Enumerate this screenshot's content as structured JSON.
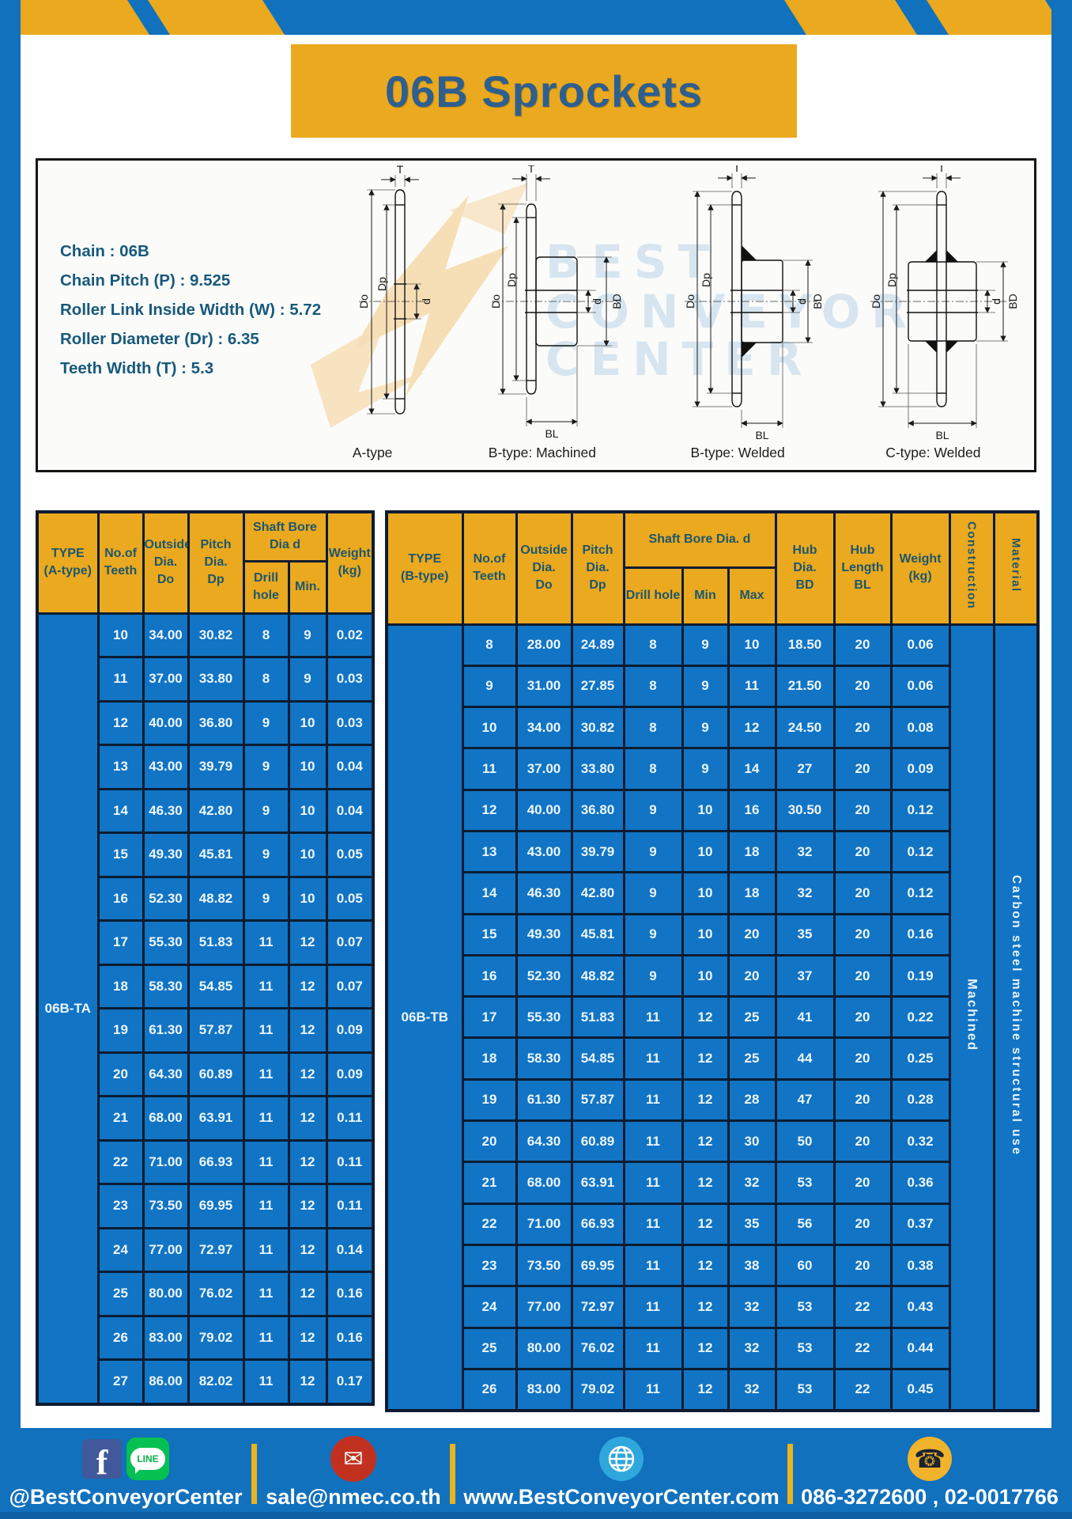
{
  "page": {
    "title": "06B Sprockets"
  },
  "colors": {
    "frame_blue": "#1171bd",
    "cell_blue": "#1174c4",
    "accent_yellow": "#eaa91e",
    "border_navy": "#0c1c30",
    "title_text": "#2e5f8e",
    "spec_text": "#17597c"
  },
  "specs": {
    "lines": [
      "Chain : 06B",
      "Chain Pitch (P) : 9.525",
      "Roller Link Inside Width (W) : 5.72",
      "Roller Diameter (Dr) : 6.35",
      "Teeth Width (T) : 5.3"
    ]
  },
  "watermark": {
    "lines": [
      "BEST",
      "CONVEYOR",
      "CENTER"
    ]
  },
  "diagrams": {
    "captions": [
      "A-type",
      "B-type: Machined",
      "B-type: Welded",
      "C-type: Welded"
    ],
    "dims": {
      "t": "T",
      "do": "Do",
      "dp": "Dp",
      "d": "d",
      "bd": "BD",
      "bl": "BL"
    }
  },
  "table_a": {
    "type_label": "06B-TA",
    "headers": {
      "type": "TYPE\n(A-type)",
      "teeth": "No.of\nTeeth",
      "outside": "Outside\nDia.\nDo",
      "pitch": "Pitch Dia.\nDp",
      "shaft": "Shaft Bore Dia d",
      "drill": "Drill hole",
      "min": "Min.",
      "weight": "Weight\n(kg)"
    },
    "rows": [
      [
        "10",
        "34.00",
        "30.82",
        "8",
        "9",
        "0.02"
      ],
      [
        "11",
        "37.00",
        "33.80",
        "8",
        "9",
        "0.03"
      ],
      [
        "12",
        "40.00",
        "36.80",
        "9",
        "10",
        "0.03"
      ],
      [
        "13",
        "43.00",
        "39.79",
        "9",
        "10",
        "0.04"
      ],
      [
        "14",
        "46.30",
        "42.80",
        "9",
        "10",
        "0.04"
      ],
      [
        "15",
        "49.30",
        "45.81",
        "9",
        "10",
        "0.05"
      ],
      [
        "16",
        "52.30",
        "48.82",
        "9",
        "10",
        "0.05"
      ],
      [
        "17",
        "55.30",
        "51.83",
        "11",
        "12",
        "0.07"
      ],
      [
        "18",
        "58.30",
        "54.85",
        "11",
        "12",
        "0.07"
      ],
      [
        "19",
        "61.30",
        "57.87",
        "11",
        "12",
        "0.09"
      ],
      [
        "20",
        "64.30",
        "60.89",
        "11",
        "12",
        "0.09"
      ],
      [
        "21",
        "68.00",
        "63.91",
        "11",
        "12",
        "0.11"
      ],
      [
        "22",
        "71.00",
        "66.93",
        "11",
        "12",
        "0.11"
      ],
      [
        "23",
        "73.50",
        "69.95",
        "11",
        "12",
        "0.11"
      ],
      [
        "24",
        "77.00",
        "72.97",
        "11",
        "12",
        "0.14"
      ],
      [
        "25",
        "80.00",
        "76.02",
        "11",
        "12",
        "0.16"
      ],
      [
        "26",
        "83.00",
        "79.02",
        "11",
        "12",
        "0.16"
      ],
      [
        "27",
        "86.00",
        "82.02",
        "11",
        "12",
        "0.17"
      ]
    ]
  },
  "table_b": {
    "type_label": "06B-TB",
    "construction_value": "Machined",
    "material_value": "Carbon steel machine structural use",
    "headers": {
      "type": "TYPE\n(B-type)",
      "teeth": "No.of\nTeeth",
      "outside": "Outside\nDia.\nDo",
      "pitch": "Pitch\nDia.\nDp",
      "shaft": "Shaft Bore Dia. d",
      "drill": "Drill hole",
      "min": "Min",
      "max": "Max",
      "hub_dia": "Hub\nDia.\nBD",
      "hub_len": "Hub\nLength\nBL",
      "weight": "Weight\n(kg)",
      "construction": "Construction",
      "material": "Material"
    },
    "rows": [
      [
        "8",
        "28.00",
        "24.89",
        "8",
        "9",
        "10",
        "18.50",
        "20",
        "0.06"
      ],
      [
        "9",
        "31.00",
        "27.85",
        "8",
        "9",
        "11",
        "21.50",
        "20",
        "0.06"
      ],
      [
        "10",
        "34.00",
        "30.82",
        "8",
        "9",
        "12",
        "24.50",
        "20",
        "0.08"
      ],
      [
        "11",
        "37.00",
        "33.80",
        "8",
        "9",
        "14",
        "27",
        "20",
        "0.09"
      ],
      [
        "12",
        "40.00",
        "36.80",
        "9",
        "10",
        "16",
        "30.50",
        "20",
        "0.12"
      ],
      [
        "13",
        "43.00",
        "39.79",
        "9",
        "10",
        "18",
        "32",
        "20",
        "0.12"
      ],
      [
        "14",
        "46.30",
        "42.80",
        "9",
        "10",
        "18",
        "32",
        "20",
        "0.12"
      ],
      [
        "15",
        "49.30",
        "45.81",
        "9",
        "10",
        "20",
        "35",
        "20",
        "0.16"
      ],
      [
        "16",
        "52.30",
        "48.82",
        "9",
        "10",
        "20",
        "37",
        "20",
        "0.19"
      ],
      [
        "17",
        "55.30",
        "51.83",
        "11",
        "12",
        "25",
        "41",
        "20",
        "0.22"
      ],
      [
        "18",
        "58.30",
        "54.85",
        "11",
        "12",
        "25",
        "44",
        "20",
        "0.25"
      ],
      [
        "19",
        "61.30",
        "57.87",
        "11",
        "12",
        "28",
        "47",
        "20",
        "0.28"
      ],
      [
        "20",
        "64.30",
        "60.89",
        "11",
        "12",
        "30",
        "50",
        "20",
        "0.32"
      ],
      [
        "21",
        "68.00",
        "63.91",
        "11",
        "12",
        "32",
        "53",
        "20",
        "0.36"
      ],
      [
        "22",
        "71.00",
        "66.93",
        "11",
        "12",
        "35",
        "56",
        "20",
        "0.37"
      ],
      [
        "23",
        "73.50",
        "69.95",
        "11",
        "12",
        "38",
        "60",
        "20",
        "0.38"
      ],
      [
        "24",
        "77.00",
        "72.97",
        "11",
        "12",
        "32",
        "53",
        "22",
        "0.43"
      ],
      [
        "25",
        "80.00",
        "76.02",
        "11",
        "12",
        "32",
        "53",
        "22",
        "0.44"
      ],
      [
        "26",
        "83.00",
        "79.02",
        "11",
        "12",
        "32",
        "53",
        "22",
        "0.45"
      ]
    ]
  },
  "footer": {
    "facebook_letter": "f",
    "line_text": "LINE",
    "mail_glyph": "✉",
    "phone_glyph": "☎",
    "social": "@BestConveyorCenter",
    "email": "sale@nmec.co.th",
    "website": "www.BestConveyorCenter.com",
    "phone": "086-3272600 , 02-0017766"
  }
}
